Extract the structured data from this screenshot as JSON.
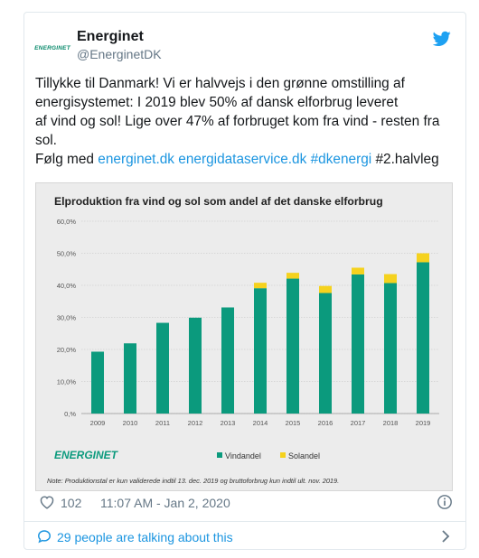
{
  "tweet": {
    "avatar_text": "ENERGINET",
    "name": "Energinet",
    "handle": "@EnerginetDK",
    "text_lines": [
      "Tillykke til Danmark! Vi er halvvejs i den grønne omstilling af",
      "energisystemet: I 2019 blev 50% af dansk elforbrug leveret",
      "af vind og sol! Lige over 47% af forbruget kom fra vind - resten fra",
      "sol."
    ],
    "follow_prefix": "Følg med ",
    "links": [
      "energinet.dk",
      "energidataservice.dk",
      "#dkenergi"
    ],
    "follow_suffix": " #2.halvleg",
    "likes": "102",
    "timestamp": "11:07 AM - Jan 2, 2020",
    "talking": "29 people are talking about this"
  },
  "chart_data": {
    "type": "bar",
    "title": "Elproduktion fra vind og sol som andel af det danske elforbrug",
    "categories": [
      "2009",
      "2010",
      "2011",
      "2012",
      "2013",
      "2014",
      "2015",
      "2016",
      "2017",
      "2018",
      "2019"
    ],
    "series": [
      {
        "name": "Vindandel",
        "values": [
          19.3,
          21.9,
          28.3,
          29.9,
          33.1,
          39.1,
          42.1,
          37.6,
          43.4,
          40.7,
          47.2
        ]
      },
      {
        "name": "Solandel",
        "values": [
          0,
          0,
          0,
          0,
          0,
          1.7,
          1.8,
          2.2,
          2.1,
          2.8,
          2.8
        ]
      }
    ],
    "yticks": [
      "0,%",
      "10,0%",
      "20,0%",
      "30,0%",
      "40,0%",
      "50,0%",
      "60,0%"
    ],
    "ylim": [
      0,
      60
    ],
    "legend_position": "bottom",
    "logo": "ENERGINET",
    "note": "Note: Produktionstal er kun validerede indtil 13. dec. 2019 og bruttoforbrug kun indtil ult. nov. 2019.",
    "colors": {
      "wind": "#0b9a7d",
      "solar": "#f5d21e"
    }
  }
}
